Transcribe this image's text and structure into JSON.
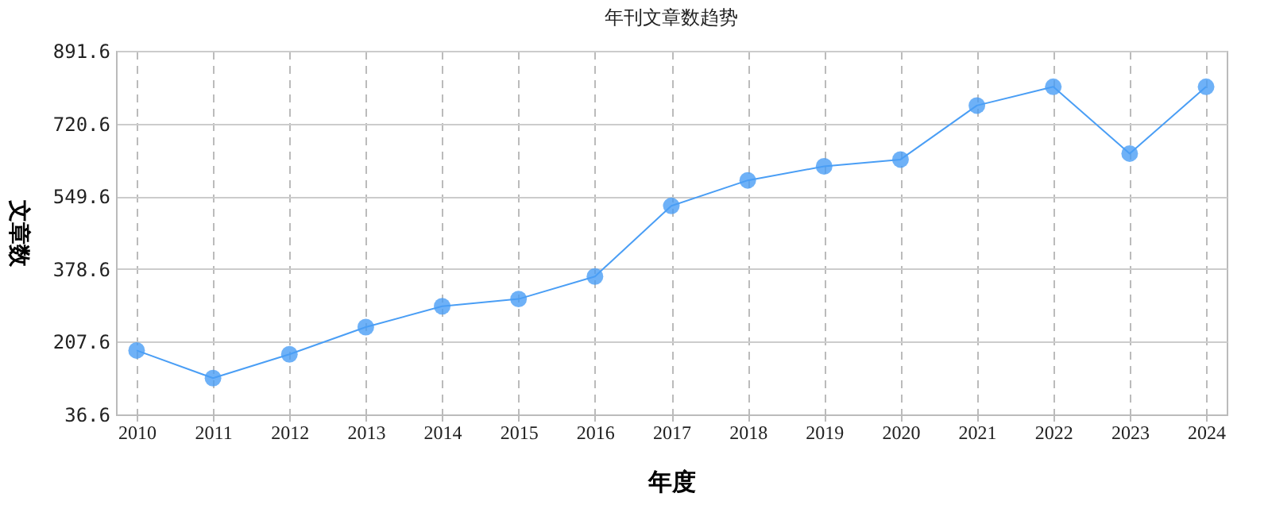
{
  "chart_data": {
    "type": "line",
    "title": "年刊文章数趋势",
    "xlabel": "年度",
    "ylabel": "文章数",
    "categories": [
      "2010",
      "2011",
      "2012",
      "2013",
      "2014",
      "2015",
      "2016",
      "2017",
      "2018",
      "2019",
      "2020",
      "2021",
      "2022",
      "2023",
      "2024"
    ],
    "series": [
      {
        "color": "#4a9ef5",
        "values": [
          187,
          122,
          178,
          242,
          291,
          308,
          361,
          527,
          587,
          620,
          636,
          763,
          807,
          650,
          807
        ]
      }
    ],
    "ylim": [
      36.6,
      891.6
    ],
    "yticks": [
      36.6,
      207.6,
      378.6,
      549.6,
      720.6,
      891.6
    ],
    "grid": true,
    "marker": "circle",
    "line_style": "solid"
  }
}
